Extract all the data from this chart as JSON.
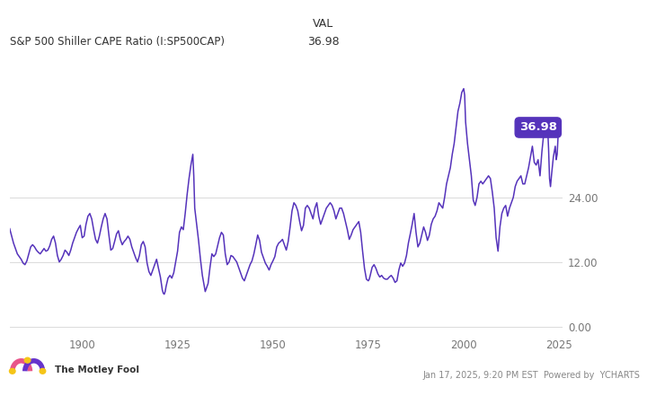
{
  "title_left": "S&P 500 Shiller CAPE Ratio (I:SP500CAP)",
  "title_right_label": "VAL",
  "title_right_value": "36.98",
  "current_value": 36.98,
  "current_value_label": "36.98",
  "line_color": "#5533bb",
  "annotation_bg": "#5533bb",
  "annotation_text_color": "#ffffff",
  "background_color": "#ffffff",
  "plot_bg": "#ffffff",
  "grid_color": "#dddddd",
  "yticks": [
    0.0,
    12.0,
    24.0
  ],
  "ytick_labels": [
    "0.00",
    "12.00",
    "24.00"
  ],
  "xticks": [
    1900,
    1925,
    1950,
    1975,
    2000,
    2025
  ],
  "ylim": [
    -1.5,
    50
  ],
  "xlim": [
    1881,
    2026
  ],
  "footer_left": "The Motley Fool",
  "footer_right": "Jan 17, 2025, 9:20 PM EST  Powered by  YCHARTS",
  "cape_data": [
    [
      1881.0,
      18.18
    ],
    [
      1881.25,
      17.5
    ],
    [
      1881.5,
      16.8
    ],
    [
      1881.75,
      16.2
    ],
    [
      1882.0,
      15.5
    ],
    [
      1882.25,
      15.0
    ],
    [
      1882.5,
      14.5
    ],
    [
      1882.75,
      14.0
    ],
    [
      1883.0,
      13.5
    ],
    [
      1883.5,
      13.0
    ],
    [
      1884.0,
      12.5
    ],
    [
      1884.5,
      11.8
    ],
    [
      1885.0,
      11.5
    ],
    [
      1885.5,
      12.2
    ],
    [
      1886.0,
      13.5
    ],
    [
      1886.5,
      14.8
    ],
    [
      1887.0,
      15.2
    ],
    [
      1887.5,
      14.8
    ],
    [
      1888.0,
      14.2
    ],
    [
      1888.5,
      13.8
    ],
    [
      1889.0,
      13.5
    ],
    [
      1889.5,
      14.0
    ],
    [
      1890.0,
      14.5
    ],
    [
      1890.5,
      14.0
    ],
    [
      1891.0,
      14.2
    ],
    [
      1891.5,
      15.0
    ],
    [
      1892.0,
      16.2
    ],
    [
      1892.5,
      16.8
    ],
    [
      1893.0,
      15.5
    ],
    [
      1893.5,
      13.2
    ],
    [
      1894.0,
      12.0
    ],
    [
      1894.5,
      12.5
    ],
    [
      1895.0,
      13.2
    ],
    [
      1895.5,
      14.2
    ],
    [
      1896.0,
      13.8
    ],
    [
      1896.5,
      13.2
    ],
    [
      1897.0,
      14.2
    ],
    [
      1897.5,
      15.5
    ],
    [
      1898.0,
      16.5
    ],
    [
      1898.5,
      17.5
    ],
    [
      1899.0,
      18.2
    ],
    [
      1899.5,
      18.8
    ],
    [
      1900.0,
      16.5
    ],
    [
      1900.5,
      16.8
    ],
    [
      1901.0,
      19.0
    ],
    [
      1901.5,
      20.5
    ],
    [
      1902.0,
      21.0
    ],
    [
      1902.5,
      20.0
    ],
    [
      1903.0,
      18.0
    ],
    [
      1903.5,
      16.2
    ],
    [
      1904.0,
      15.5
    ],
    [
      1904.5,
      16.8
    ],
    [
      1905.0,
      18.5
    ],
    [
      1905.5,
      20.0
    ],
    [
      1906.0,
      21.0
    ],
    [
      1906.5,
      20.0
    ],
    [
      1907.0,
      17.0
    ],
    [
      1907.5,
      14.2
    ],
    [
      1908.0,
      14.5
    ],
    [
      1908.5,
      15.8
    ],
    [
      1909.0,
      17.2
    ],
    [
      1909.5,
      17.8
    ],
    [
      1910.0,
      16.2
    ],
    [
      1910.5,
      15.2
    ],
    [
      1911.0,
      15.8
    ],
    [
      1911.5,
      16.2
    ],
    [
      1912.0,
      16.8
    ],
    [
      1912.5,
      16.2
    ],
    [
      1913.0,
      14.8
    ],
    [
      1913.5,
      13.8
    ],
    [
      1914.0,
      12.8
    ],
    [
      1914.5,
      12.0
    ],
    [
      1915.0,
      13.2
    ],
    [
      1915.5,
      15.2
    ],
    [
      1916.0,
      15.8
    ],
    [
      1916.5,
      14.8
    ],
    [
      1917.0,
      11.8
    ],
    [
      1917.5,
      10.2
    ],
    [
      1918.0,
      9.5
    ],
    [
      1918.5,
      10.5
    ],
    [
      1919.0,
      11.5
    ],
    [
      1919.5,
      12.5
    ],
    [
      1920.0,
      10.8
    ],
    [
      1920.5,
      9.2
    ],
    [
      1921.0,
      6.8
    ],
    [
      1921.25,
      6.2
    ],
    [
      1921.5,
      6.0
    ],
    [
      1921.75,
      6.5
    ],
    [
      1922.0,
      7.5
    ],
    [
      1922.5,
      9.0
    ],
    [
      1923.0,
      9.5
    ],
    [
      1923.5,
      9.0
    ],
    [
      1924.0,
      10.0
    ],
    [
      1924.5,
      12.0
    ],
    [
      1925.0,
      14.0
    ],
    [
      1925.5,
      17.5
    ],
    [
      1926.0,
      18.5
    ],
    [
      1926.5,
      18.0
    ],
    [
      1927.0,
      21.0
    ],
    [
      1927.5,
      24.5
    ],
    [
      1928.0,
      27.5
    ],
    [
      1928.5,
      30.0
    ],
    [
      1929.0,
      32.0
    ],
    [
      1929.25,
      28.0
    ],
    [
      1929.5,
      22.0
    ],
    [
      1930.0,
      19.0
    ],
    [
      1930.5,
      16.0
    ],
    [
      1931.0,
      12.5
    ],
    [
      1931.5,
      9.5
    ],
    [
      1932.0,
      7.5
    ],
    [
      1932.25,
      6.5
    ],
    [
      1932.5,
      7.0
    ],
    [
      1933.0,
      8.0
    ],
    [
      1933.5,
      11.0
    ],
    [
      1934.0,
      13.5
    ],
    [
      1934.5,
      13.0
    ],
    [
      1935.0,
      13.5
    ],
    [
      1935.5,
      15.0
    ],
    [
      1936.0,
      16.5
    ],
    [
      1936.5,
      17.5
    ],
    [
      1937.0,
      17.0
    ],
    [
      1937.5,
      13.5
    ],
    [
      1938.0,
      11.5
    ],
    [
      1938.5,
      12.0
    ],
    [
      1939.0,
      13.2
    ],
    [
      1939.5,
      13.0
    ],
    [
      1940.0,
      12.5
    ],
    [
      1940.5,
      12.0
    ],
    [
      1941.0,
      11.0
    ],
    [
      1941.5,
      10.0
    ],
    [
      1942.0,
      9.0
    ],
    [
      1942.5,
      8.5
    ],
    [
      1943.0,
      9.5
    ],
    [
      1943.5,
      10.5
    ],
    [
      1944.0,
      11.5
    ],
    [
      1944.5,
      12.2
    ],
    [
      1945.0,
      13.5
    ],
    [
      1945.5,
      15.2
    ],
    [
      1946.0,
      17.0
    ],
    [
      1946.5,
      16.0
    ],
    [
      1947.0,
      13.8
    ],
    [
      1947.5,
      12.8
    ],
    [
      1948.0,
      11.8
    ],
    [
      1948.5,
      11.2
    ],
    [
      1949.0,
      10.5
    ],
    [
      1949.5,
      11.5
    ],
    [
      1950.0,
      12.2
    ],
    [
      1950.5,
      13.0
    ],
    [
      1951.0,
      14.8
    ],
    [
      1951.5,
      15.5
    ],
    [
      1952.0,
      15.8
    ],
    [
      1952.5,
      16.2
    ],
    [
      1953.0,
      15.2
    ],
    [
      1953.5,
      14.2
    ],
    [
      1954.0,
      15.8
    ],
    [
      1954.5,
      18.5
    ],
    [
      1955.0,
      21.5
    ],
    [
      1955.5,
      23.0
    ],
    [
      1956.0,
      22.5
    ],
    [
      1956.5,
      21.5
    ],
    [
      1957.0,
      19.5
    ],
    [
      1957.5,
      17.8
    ],
    [
      1958.0,
      18.8
    ],
    [
      1958.5,
      22.0
    ],
    [
      1959.0,
      22.5
    ],
    [
      1959.5,
      22.0
    ],
    [
      1960.0,
      21.0
    ],
    [
      1960.5,
      20.0
    ],
    [
      1961.0,
      22.0
    ],
    [
      1961.5,
      23.0
    ],
    [
      1962.0,
      20.5
    ],
    [
      1962.5,
      19.0
    ],
    [
      1963.0,
      20.0
    ],
    [
      1963.5,
      21.0
    ],
    [
      1964.0,
      22.0
    ],
    [
      1964.5,
      22.5
    ],
    [
      1965.0,
      23.0
    ],
    [
      1965.5,
      22.5
    ],
    [
      1966.0,
      21.5
    ],
    [
      1966.5,
      20.0
    ],
    [
      1967.0,
      21.0
    ],
    [
      1967.5,
      22.0
    ],
    [
      1968.0,
      22.0
    ],
    [
      1968.5,
      21.0
    ],
    [
      1969.0,
      19.5
    ],
    [
      1969.5,
      18.0
    ],
    [
      1970.0,
      16.2
    ],
    [
      1970.5,
      17.0
    ],
    [
      1971.0,
      18.0
    ],
    [
      1971.5,
      18.5
    ],
    [
      1972.0,
      19.0
    ],
    [
      1972.5,
      19.5
    ],
    [
      1973.0,
      17.5
    ],
    [
      1973.5,
      14.0
    ],
    [
      1974.0,
      10.8
    ],
    [
      1974.5,
      8.8
    ],
    [
      1975.0,
      8.5
    ],
    [
      1975.25,
      8.8
    ],
    [
      1975.5,
      9.5
    ],
    [
      1976.0,
      11.0
    ],
    [
      1976.5,
      11.5
    ],
    [
      1977.0,
      10.8
    ],
    [
      1977.5,
      9.8
    ],
    [
      1978.0,
      9.2
    ],
    [
      1978.5,
      9.5
    ],
    [
      1979.0,
      9.0
    ],
    [
      1979.5,
      8.8
    ],
    [
      1980.0,
      8.8
    ],
    [
      1980.5,
      9.2
    ],
    [
      1981.0,
      9.5
    ],
    [
      1981.5,
      9.0
    ],
    [
      1982.0,
      8.2
    ],
    [
      1982.5,
      8.5
    ],
    [
      1983.0,
      10.5
    ],
    [
      1983.5,
      11.8
    ],
    [
      1984.0,
      11.2
    ],
    [
      1984.5,
      11.8
    ],
    [
      1985.0,
      13.2
    ],
    [
      1985.5,
      15.5
    ],
    [
      1986.0,
      17.2
    ],
    [
      1986.5,
      19.0
    ],
    [
      1987.0,
      21.0
    ],
    [
      1987.5,
      17.5
    ],
    [
      1988.0,
      14.8
    ],
    [
      1988.5,
      15.5
    ],
    [
      1989.0,
      17.0
    ],
    [
      1989.5,
      18.5
    ],
    [
      1990.0,
      17.5
    ],
    [
      1990.5,
      16.0
    ],
    [
      1991.0,
      17.0
    ],
    [
      1991.5,
      19.0
    ],
    [
      1992.0,
      20.0
    ],
    [
      1992.5,
      20.5
    ],
    [
      1993.0,
      21.5
    ],
    [
      1993.5,
      23.0
    ],
    [
      1994.0,
      22.5
    ],
    [
      1994.5,
      22.0
    ],
    [
      1995.0,
      24.0
    ],
    [
      1995.5,
      26.5
    ],
    [
      1996.0,
      28.0
    ],
    [
      1996.5,
      29.5
    ],
    [
      1997.0,
      32.0
    ],
    [
      1997.5,
      34.0
    ],
    [
      1998.0,
      37.0
    ],
    [
      1998.5,
      40.0
    ],
    [
      1999.0,
      41.5
    ],
    [
      1999.5,
      43.5
    ],
    [
      2000.0,
      44.2
    ],
    [
      2000.25,
      43.0
    ],
    [
      2000.5,
      38.0
    ],
    [
      2001.0,
      34.0
    ],
    [
      2001.5,
      31.0
    ],
    [
      2002.0,
      28.0
    ],
    [
      2002.5,
      23.5
    ],
    [
      2003.0,
      22.5
    ],
    [
      2003.5,
      24.0
    ],
    [
      2004.0,
      26.5
    ],
    [
      2004.5,
      27.0
    ],
    [
      2005.0,
      26.5
    ],
    [
      2005.5,
      27.0
    ],
    [
      2006.0,
      27.5
    ],
    [
      2006.5,
      28.0
    ],
    [
      2007.0,
      27.5
    ],
    [
      2007.5,
      25.0
    ],
    [
      2008.0,
      22.0
    ],
    [
      2008.5,
      16.5
    ],
    [
      2009.0,
      14.0
    ],
    [
      2009.5,
      18.5
    ],
    [
      2010.0,
      21.0
    ],
    [
      2010.5,
      22.0
    ],
    [
      2011.0,
      22.5
    ],
    [
      2011.5,
      20.5
    ],
    [
      2012.0,
      22.0
    ],
    [
      2012.5,
      23.0
    ],
    [
      2013.0,
      24.0
    ],
    [
      2013.5,
      26.0
    ],
    [
      2014.0,
      27.0
    ],
    [
      2014.5,
      27.5
    ],
    [
      2015.0,
      28.0
    ],
    [
      2015.5,
      26.5
    ],
    [
      2016.0,
      26.5
    ],
    [
      2016.5,
      28.0
    ],
    [
      2017.0,
      29.5
    ],
    [
      2017.5,
      31.5
    ],
    [
      2018.0,
      33.5
    ],
    [
      2018.5,
      30.5
    ],
    [
      2019.0,
      30.0
    ],
    [
      2019.5,
      31.0
    ],
    [
      2020.0,
      28.0
    ],
    [
      2020.5,
      32.5
    ],
    [
      2021.0,
      36.0
    ],
    [
      2021.5,
      38.5
    ],
    [
      2022.0,
      37.0
    ],
    [
      2022.25,
      33.0
    ],
    [
      2022.5,
      27.5
    ],
    [
      2022.75,
      26.0
    ],
    [
      2023.0,
      28.0
    ],
    [
      2023.5,
      31.5
    ],
    [
      2024.0,
      33.5
    ],
    [
      2024.25,
      31.0
    ],
    [
      2024.5,
      32.0
    ],
    [
      2024.75,
      35.5
    ],
    [
      2025.0,
      36.98
    ]
  ]
}
